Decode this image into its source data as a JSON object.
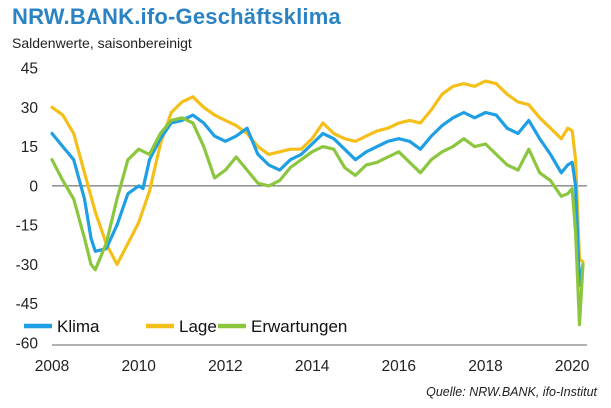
{
  "header": {
    "title": "NRW.BANK.ifo-Geschäftsklima",
    "subtitle": "Saldenwerte, saisonbereinigt"
  },
  "footer": {
    "source": "Quelle:  NRW.BANK, ifo-Institut"
  },
  "colors": {
    "klima": "#1f9fe3",
    "lage": "#f5bf1a",
    "erwartungen": "#8cc63f",
    "title": "#2c83c4"
  },
  "chart_data": {
    "type": "line",
    "title": "NRW.BANK.ifo-Geschäftsklima",
    "subtitle": "Saldenwerte, saisonbereinigt",
    "xlabel": "",
    "ylabel": "",
    "xlim": [
      2008,
      2020.25
    ],
    "ylim": [
      -60,
      45
    ],
    "x_ticks": [
      2008,
      2010,
      2012,
      2014,
      2016,
      2018,
      2020
    ],
    "y_ticks": [
      45,
      30,
      15,
      0,
      -15,
      -30,
      -45,
      -60
    ],
    "grid": false,
    "zero_line": true,
    "legend_position": "bottom-left",
    "series": [
      {
        "name": "Klima",
        "color": "#1f9fe3",
        "points": [
          [
            2008.0,
            20
          ],
          [
            2008.25,
            15
          ],
          [
            2008.5,
            10
          ],
          [
            2008.75,
            -5
          ],
          [
            2008.9,
            -20
          ],
          [
            2009.0,
            -25
          ],
          [
            2009.25,
            -24
          ],
          [
            2009.5,
            -15
          ],
          [
            2009.75,
            -3
          ],
          [
            2010.0,
            0
          ],
          [
            2010.1,
            -1
          ],
          [
            2010.25,
            10
          ],
          [
            2010.5,
            18
          ],
          [
            2010.75,
            24
          ],
          [
            2011.0,
            25
          ],
          [
            2011.25,
            27
          ],
          [
            2011.5,
            24
          ],
          [
            2011.75,
            19
          ],
          [
            2012.0,
            17
          ],
          [
            2012.25,
            19
          ],
          [
            2012.5,
            22
          ],
          [
            2012.75,
            12
          ],
          [
            2013.0,
            8
          ],
          [
            2013.25,
            6
          ],
          [
            2013.5,
            10
          ],
          [
            2013.75,
            12
          ],
          [
            2014.0,
            16
          ],
          [
            2014.25,
            20
          ],
          [
            2014.5,
            18
          ],
          [
            2014.75,
            14
          ],
          [
            2015.0,
            10
          ],
          [
            2015.25,
            13
          ],
          [
            2015.5,
            15
          ],
          [
            2015.75,
            17
          ],
          [
            2016.0,
            18
          ],
          [
            2016.25,
            17
          ],
          [
            2016.5,
            14
          ],
          [
            2016.75,
            19
          ],
          [
            2017.0,
            23
          ],
          [
            2017.25,
            26
          ],
          [
            2017.5,
            28
          ],
          [
            2017.75,
            26
          ],
          [
            2018.0,
            28
          ],
          [
            2018.25,
            27
          ],
          [
            2018.5,
            22
          ],
          [
            2018.75,
            20
          ],
          [
            2019.0,
            25
          ],
          [
            2019.25,
            18
          ],
          [
            2019.5,
            12
          ],
          [
            2019.75,
            5
          ],
          [
            2019.9,
            8
          ],
          [
            2020.0,
            9
          ],
          [
            2020.08,
            0
          ],
          [
            2020.17,
            -38
          ],
          [
            2020.25,
            -30
          ]
        ]
      },
      {
        "name": "Lage",
        "color": "#f5bf1a",
        "points": [
          [
            2008.0,
            30
          ],
          [
            2008.25,
            27
          ],
          [
            2008.5,
            20
          ],
          [
            2008.75,
            5
          ],
          [
            2009.0,
            -10
          ],
          [
            2009.25,
            -22
          ],
          [
            2009.5,
            -30
          ],
          [
            2009.75,
            -22
          ],
          [
            2010.0,
            -14
          ],
          [
            2010.25,
            -2
          ],
          [
            2010.5,
            16
          ],
          [
            2010.75,
            28
          ],
          [
            2011.0,
            32
          ],
          [
            2011.25,
            34
          ],
          [
            2011.5,
            30
          ],
          [
            2011.75,
            27
          ],
          [
            2012.0,
            25
          ],
          [
            2012.25,
            23
          ],
          [
            2012.5,
            20
          ],
          [
            2012.75,
            15
          ],
          [
            2013.0,
            12
          ],
          [
            2013.25,
            13
          ],
          [
            2013.5,
            14
          ],
          [
            2013.75,
            14
          ],
          [
            2014.0,
            18
          ],
          [
            2014.25,
            24
          ],
          [
            2014.5,
            20
          ],
          [
            2014.75,
            18
          ],
          [
            2015.0,
            17
          ],
          [
            2015.25,
            19
          ],
          [
            2015.5,
            21
          ],
          [
            2015.75,
            22
          ],
          [
            2016.0,
            24
          ],
          [
            2016.25,
            25
          ],
          [
            2016.5,
            24
          ],
          [
            2016.75,
            29
          ],
          [
            2017.0,
            35
          ],
          [
            2017.25,
            38
          ],
          [
            2017.5,
            39
          ],
          [
            2017.75,
            38
          ],
          [
            2018.0,
            40
          ],
          [
            2018.25,
            39
          ],
          [
            2018.5,
            35
          ],
          [
            2018.75,
            32
          ],
          [
            2019.0,
            31
          ],
          [
            2019.25,
            26
          ],
          [
            2019.5,
            22
          ],
          [
            2019.75,
            18
          ],
          [
            2019.9,
            22
          ],
          [
            2020.0,
            21
          ],
          [
            2020.08,
            10
          ],
          [
            2020.17,
            -28
          ],
          [
            2020.25,
            -29
          ]
        ]
      },
      {
        "name": "Erwartungen",
        "color": "#8cc63f",
        "points": [
          [
            2008.0,
            10
          ],
          [
            2008.25,
            2
          ],
          [
            2008.5,
            -5
          ],
          [
            2008.75,
            -20
          ],
          [
            2008.9,
            -30
          ],
          [
            2009.0,
            -32
          ],
          [
            2009.25,
            -22
          ],
          [
            2009.5,
            -5
          ],
          [
            2009.75,
            10
          ],
          [
            2010.0,
            14
          ],
          [
            2010.25,
            12
          ],
          [
            2010.5,
            20
          ],
          [
            2010.75,
            25
          ],
          [
            2011.0,
            26
          ],
          [
            2011.25,
            24
          ],
          [
            2011.5,
            15
          ],
          [
            2011.75,
            3
          ],
          [
            2012.0,
            6
          ],
          [
            2012.25,
            11
          ],
          [
            2012.5,
            6
          ],
          [
            2012.75,
            1
          ],
          [
            2013.0,
            0
          ],
          [
            2013.25,
            2
          ],
          [
            2013.5,
            7
          ],
          [
            2013.75,
            10
          ],
          [
            2014.0,
            13
          ],
          [
            2014.25,
            15
          ],
          [
            2014.5,
            14
          ],
          [
            2014.75,
            7
          ],
          [
            2015.0,
            4
          ],
          [
            2015.25,
            8
          ],
          [
            2015.5,
            9
          ],
          [
            2015.75,
            11
          ],
          [
            2016.0,
            13
          ],
          [
            2016.25,
            9
          ],
          [
            2016.5,
            5
          ],
          [
            2016.75,
            10
          ],
          [
            2017.0,
            13
          ],
          [
            2017.25,
            15
          ],
          [
            2017.5,
            18
          ],
          [
            2017.75,
            15
          ],
          [
            2018.0,
            16
          ],
          [
            2018.25,
            12
          ],
          [
            2018.5,
            8
          ],
          [
            2018.75,
            6
          ],
          [
            2019.0,
            14
          ],
          [
            2019.25,
            5
          ],
          [
            2019.5,
            2
          ],
          [
            2019.75,
            -4
          ],
          [
            2019.9,
            -3
          ],
          [
            2020.0,
            -1
          ],
          [
            2020.08,
            -18
          ],
          [
            2020.17,
            -53
          ],
          [
            2020.25,
            -30
          ]
        ]
      }
    ]
  }
}
